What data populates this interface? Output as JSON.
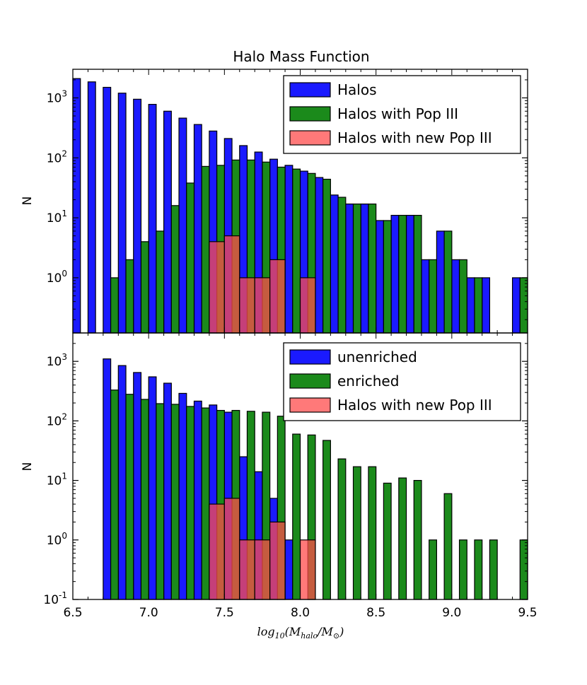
{
  "chart_data": [
    {
      "type": "bar",
      "title": "Halo Mass Function",
      "xlabel": "",
      "ylabel": "N",
      "yscale": "log",
      "xlim": [
        6.5,
        9.5
      ],
      "ylim": [
        0.12,
        3000
      ],
      "yticks": [
        {
          "value": 1,
          "base": "10",
          "exp": "0"
        },
        {
          "value": 10,
          "base": "10",
          "exp": "1"
        },
        {
          "value": 100,
          "base": "10",
          "exp": "2"
        },
        {
          "value": 1000,
          "base": "10",
          "exp": "3"
        }
      ],
      "legend": {
        "position": "top-right"
      },
      "bin_width": 0.1,
      "series": [
        {
          "name": "Halos",
          "color": "#1a1aff",
          "offset": 0.0,
          "x": [
            6.5,
            6.6,
            6.7,
            6.8,
            6.9,
            7.0,
            7.1,
            7.2,
            7.3,
            7.4,
            7.5,
            7.6,
            7.7,
            7.8,
            7.9,
            8.0,
            8.1,
            8.2,
            8.3,
            8.4,
            8.5,
            8.6,
            8.7,
            8.8,
            8.9,
            9.0,
            9.1,
            9.2,
            9.4
          ],
          "values": [
            2100,
            1850,
            1500,
            1200,
            950,
            780,
            600,
            460,
            360,
            280,
            210,
            160,
            125,
            95,
            75,
            60,
            47,
            24,
            17,
            17,
            9,
            11,
            11,
            2,
            6,
            2,
            1,
            1,
            1
          ]
        },
        {
          "name": "Halos with Pop III",
          "color": "#1b8a1b",
          "offset": 0.05,
          "x": [
            6.7,
            6.8,
            6.9,
            7.0,
            7.1,
            7.2,
            7.3,
            7.4,
            7.5,
            7.6,
            7.7,
            7.8,
            7.9,
            8.0,
            8.1,
            8.2,
            8.3,
            8.4,
            8.5,
            8.6,
            8.7,
            8.8,
            8.9,
            9.0,
            9.1,
            9.4
          ],
          "values": [
            1,
            2,
            4,
            6,
            16,
            38,
            72,
            75,
            92,
            92,
            85,
            70,
            65,
            55,
            44,
            22,
            17,
            17,
            9,
            11,
            11,
            2,
            6,
            2,
            1,
            1
          ]
        },
        {
          "name": "Halos with new Pop III",
          "color": "#ff4c4c",
          "offset": 0.0,
          "x": [
            7.4,
            7.5,
            7.6,
            7.7,
            7.8,
            8.0
          ],
          "values": [
            4,
            5,
            1,
            1,
            2,
            1
          ]
        }
      ]
    },
    {
      "type": "bar",
      "title": "",
      "xlabel": "log10(Mhalo/M⊙)",
      "ylabel": "N",
      "yscale": "log",
      "xlim": [
        6.5,
        9.5
      ],
      "ylim": [
        0.1,
        3000
      ],
      "xticks": [
        "6.5",
        "7.0",
        "7.5",
        "8.0",
        "8.5",
        "9.0",
        "9.5"
      ],
      "yticks": [
        {
          "value": 0.1,
          "base": "10",
          "exp": "-1"
        },
        {
          "value": 1,
          "base": "10",
          "exp": "0"
        },
        {
          "value": 10,
          "base": "10",
          "exp": "1"
        },
        {
          "value": 100,
          "base": "10",
          "exp": "2"
        },
        {
          "value": 1000,
          "base": "10",
          "exp": "3"
        }
      ],
      "legend": {
        "position": "top-right"
      },
      "bin_width": 0.1,
      "series": [
        {
          "name": "unenriched",
          "color": "#1a1aff",
          "offset": 0.0,
          "x": [
            6.7,
            6.8,
            6.9,
            7.0,
            7.1,
            7.2,
            7.3,
            7.4,
            7.5,
            7.6,
            7.7,
            7.8,
            7.9
          ],
          "values": [
            1100,
            850,
            650,
            550,
            430,
            290,
            215,
            185,
            140,
            25,
            14,
            5,
            1
          ]
        },
        {
          "name": "enriched",
          "color": "#1b8a1b",
          "offset": 0.05,
          "x": [
            6.7,
            6.8,
            6.9,
            7.0,
            7.1,
            7.2,
            7.3,
            7.4,
            7.5,
            7.6,
            7.7,
            7.8,
            7.9,
            8.0,
            8.1,
            8.2,
            8.3,
            8.4,
            8.5,
            8.6,
            8.7,
            8.8,
            8.9,
            9.0,
            9.1,
            9.2,
            9.4
          ],
          "values": [
            330,
            280,
            230,
            195,
            190,
            175,
            165,
            150,
            150,
            145,
            140,
            120,
            60,
            58,
            47,
            23,
            17,
            17,
            9,
            11,
            10,
            1,
            6,
            1,
            1,
            1,
            1
          ]
        },
        {
          "name": "Halos with new Pop III",
          "color": "#ff4c4c",
          "offset": 0.0,
          "x": [
            7.4,
            7.5,
            7.6,
            7.7,
            7.8,
            8.0
          ],
          "values": [
            4,
            5,
            1,
            1,
            2,
            1
          ]
        }
      ]
    }
  ],
  "axis_label_math": {
    "prefix": "log",
    "sub": "10",
    "num": "M",
    "num_sub": "halo",
    "den": "M",
    "den_sub": "⊙"
  }
}
